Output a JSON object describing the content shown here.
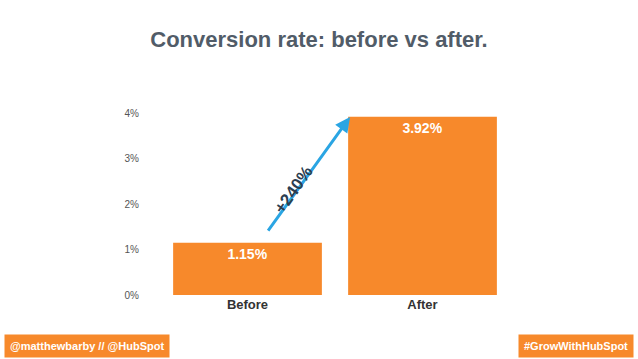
{
  "chart_data": {
    "type": "bar",
    "title": "Conversion rate: before vs after.",
    "categories": [
      "Before",
      "After"
    ],
    "values": [
      1.15,
      3.92
    ],
    "value_labels": [
      "1.15%",
      "3.92%"
    ],
    "data_labels": true,
    "color": "#f7892b",
    "ylim": [
      0,
      4
    ],
    "yticks": [
      {
        "value": 0,
        "label": "0%"
      },
      {
        "value": 1,
        "label": "1%"
      },
      {
        "value": 2,
        "label": "2%"
      },
      {
        "value": 3,
        "label": "3%"
      },
      {
        "value": 4,
        "label": "4%"
      }
    ],
    "grid": false,
    "annotations": [
      "+240%"
    ]
  },
  "footer": {
    "left": "@matthewbarby // @HubSpot",
    "right": "#GrowWithHubSpot"
  }
}
